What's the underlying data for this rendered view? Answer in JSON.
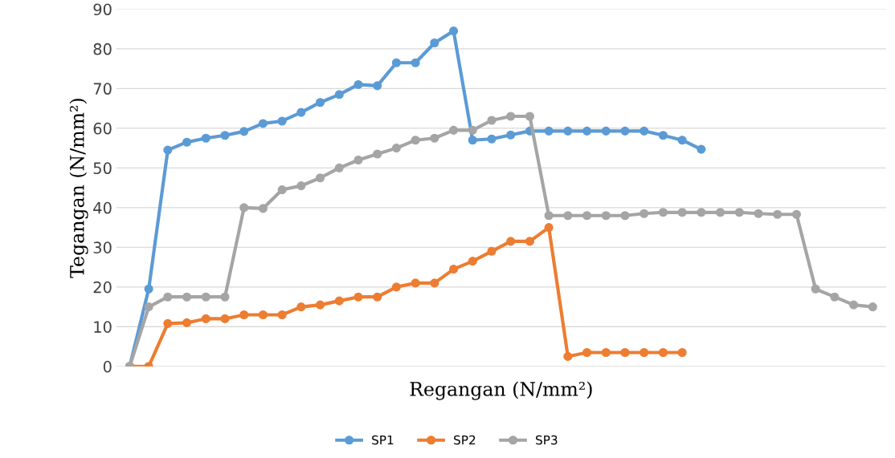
{
  "chart_data": {
    "type": "line",
    "xlabel": "Regangan (N/mm²)",
    "ylabel": "Tegangan (N/mm²)",
    "categories": [
      null,
      null,
      null,
      null,
      null,
      null,
      null,
      null,
      null,
      null,
      null,
      null,
      null,
      null,
      null,
      null,
      null,
      null,
      null,
      null,
      null,
      null,
      null,
      null,
      null,
      null,
      null,
      null,
      null,
      null,
      null,
      null,
      null,
      null,
      null,
      null,
      null,
      null,
      null,
      null
    ],
    "ylim": [
      0,
      90
    ],
    "yticks": [
      0,
      10,
      20,
      30,
      40,
      50,
      60,
      70,
      80,
      90
    ],
    "grid": "y",
    "legend": "bottom",
    "marker": "circle",
    "line_style": "solid",
    "series": [
      {
        "name": "SP1",
        "color": "#5b9bd5",
        "values": [
          0,
          19.5,
          54.5,
          56.5,
          57.5,
          58.2,
          59.2,
          61.2,
          61.8,
          64,
          66.5,
          68.5,
          71,
          70.7,
          76.5,
          76.5,
          81.5,
          84.5,
          57,
          57.3,
          58.3,
          59.3,
          59.3,
          59.3,
          59.3,
          59.3,
          59.3,
          59.3,
          58.2,
          57,
          54.7,
          null,
          null,
          null,
          null,
          null,
          null,
          null,
          null,
          null
        ]
      },
      {
        "name": "SP2",
        "color": "#ed7d31",
        "values": [
          0,
          0,
          10.8,
          11,
          12,
          12,
          13,
          13,
          13,
          15,
          15.5,
          16.5,
          17.5,
          17.5,
          20,
          21,
          21,
          24.5,
          26.5,
          29,
          31.5,
          31.5,
          35,
          2.5,
          3.5,
          3.5,
          3.5,
          3.5,
          3.5,
          3.5,
          null,
          null,
          null,
          null,
          null,
          null,
          null,
          null,
          null,
          null
        ]
      },
      {
        "name": "SP3",
        "color": "#a5a5a5",
        "values": [
          0,
          15,
          17.5,
          17.5,
          17.5,
          17.5,
          40,
          39.8,
          44.5,
          45.5,
          47.5,
          50,
          52,
          53.5,
          55,
          57,
          57.5,
          59.5,
          59.5,
          62,
          63,
          63,
          38,
          38,
          38,
          38,
          38,
          38.5,
          38.8,
          38.8,
          38.8,
          38.8,
          38.8,
          38.5,
          38.3,
          38.3,
          19.5,
          17.5,
          15.5,
          15
        ]
      }
    ]
  }
}
